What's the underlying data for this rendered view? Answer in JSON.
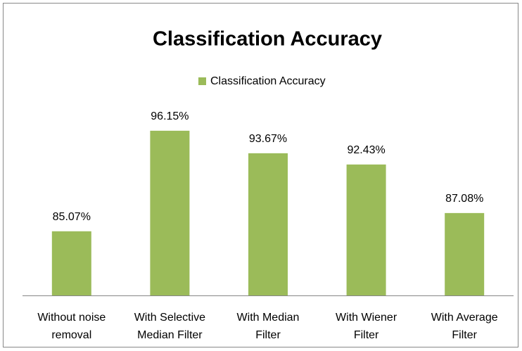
{
  "chart_data": {
    "type": "bar",
    "title": "Classification Accuracy",
    "categories": [
      [
        "Without noise",
        "removal"
      ],
      [
        "With Selective",
        "Median Filter"
      ],
      [
        "With Median",
        "Filter"
      ],
      [
        "With Wiener",
        "Filter"
      ],
      [
        "With Average",
        "Filter"
      ]
    ],
    "series": [
      {
        "name": "Classification Accuracy",
        "color": "#9bbb59",
        "values": [
          85.07,
          96.15,
          93.67,
          92.43,
          87.08
        ],
        "value_labels": [
          "85.07%",
          "96.15%",
          "93.67%",
          "92.43%",
          "87.08%"
        ]
      }
    ],
    "ylim": [
      78,
      98
    ],
    "legend": "top"
  }
}
